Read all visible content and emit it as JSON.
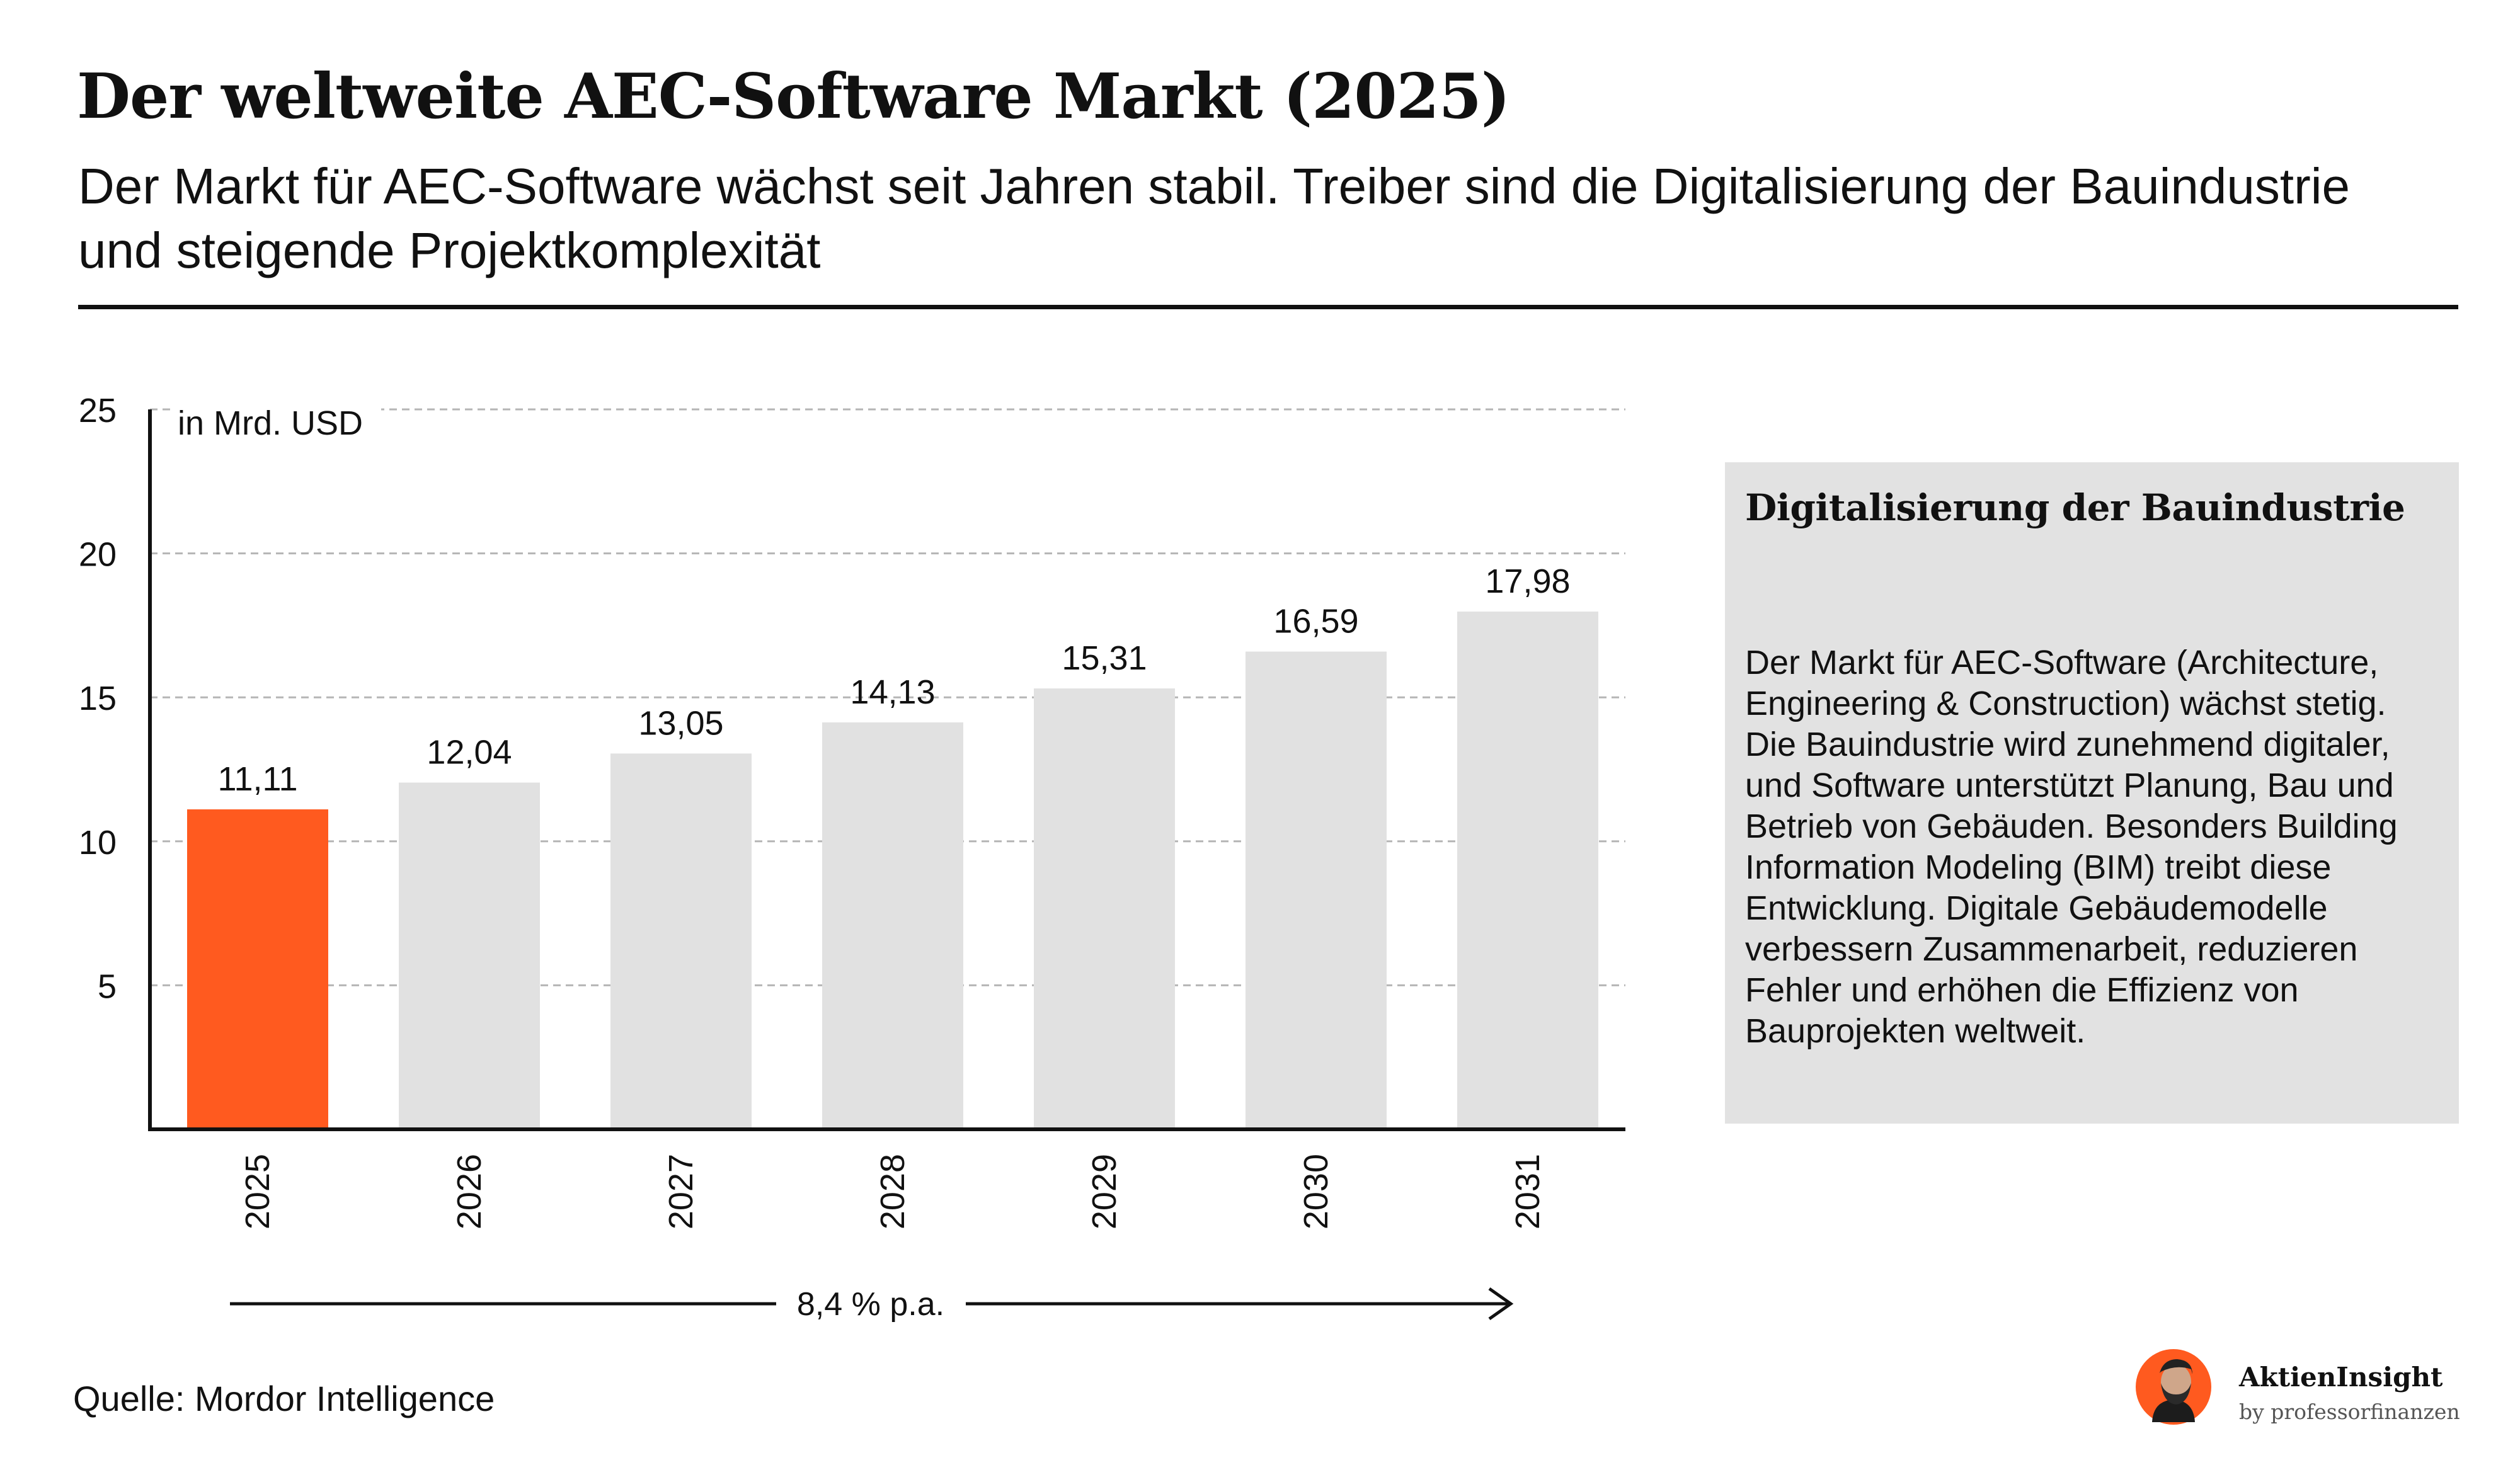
{
  "header": {
    "title": "Der weltweite AEC-Software Markt (2025)",
    "subtitle": "Der Markt für AEC-Software wächst seit Jahren stabil. Treiber sind die Digitalisierung der Bauindustrie und steigende Projektkomplexität"
  },
  "chart_data": {
    "type": "bar",
    "title": "",
    "xlabel": "",
    "ylabel": "in Mrd. USD",
    "categories": [
      "2025",
      "2026",
      "2027",
      "2028",
      "2029",
      "2030",
      "2031"
    ],
    "values": [
      11.11,
      12.04,
      13.05,
      14.13,
      15.31,
      16.59,
      17.98
    ],
    "value_labels": [
      "11,11",
      "12,04",
      "13,05",
      "14,13",
      "15,31",
      "16,59",
      "17,98"
    ],
    "ylim": [
      0,
      25
    ],
    "yticks": [
      5,
      10,
      15,
      20,
      25
    ],
    "grid": true,
    "highlight_index": 0,
    "colors": {
      "highlight": "#ff5a1f",
      "default": "#e1e1e1",
      "axis": "#111111",
      "grid": "#b5b5b5"
    },
    "annotation": "8,4 % p.a."
  },
  "sidebar": {
    "title": "Digitalisierung der Bauindustrie",
    "text": "Der Markt für AEC-Software (Architecture, Engineering & Construction) wächst stetig. Die Bauindustrie wird zunehmend digitaler, und Software unterstützt Planung, Bau und Betrieb von Gebäuden. Besonders Building Information Modeling (BIM) treibt diese Entwicklung. Digitale Gebäudemodelle verbessern Zusammenarbeit, reduzieren Fehler und erhöhen die Effizienz von Bauprojekten weltweit."
  },
  "footer": {
    "source": "Quelle: Mordor Intelligence",
    "brand_name": "AktienInsight",
    "brand_sub": "by professorfinanzen",
    "brand_accent": "#ff5a1f"
  }
}
